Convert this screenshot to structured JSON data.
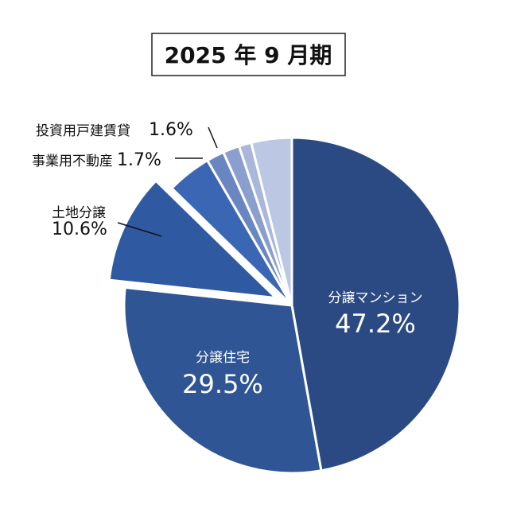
{
  "chart_data": {
    "type": "pie",
    "title": "2025 年 9 月期",
    "slices": [
      {
        "name": "分譲マンション",
        "value": 47.2,
        "label": "47.2%",
        "color": "#2b4a83",
        "exploded": false
      },
      {
        "name": "分譲住宅",
        "value": 29.5,
        "label": "29.5%",
        "color": "#2f5595",
        "exploded": false
      },
      {
        "name": "土地分譲",
        "value": 10.6,
        "label": "10.6%",
        "color": "#2f5aa2",
        "exploded": true
      },
      {
        "name": "",
        "value": 4.3,
        "label": "",
        "color": "#3a66b4",
        "exploded": false
      },
      {
        "name": "事業用不動産",
        "value": 1.7,
        "label": "1.7%",
        "color": "#6a86c2",
        "exploded": false
      },
      {
        "name": "投資用戸建賃貸",
        "value": 1.6,
        "label": "1.6%",
        "color": "#8b9fcf",
        "exploded": false
      },
      {
        "name": "",
        "value": 1.2,
        "label": "",
        "color": "#a9b7dc",
        "exploded": false
      },
      {
        "name": "",
        "value": 3.9,
        "label": "",
        "color": "#bcc7e4",
        "exploded": false
      }
    ]
  }
}
